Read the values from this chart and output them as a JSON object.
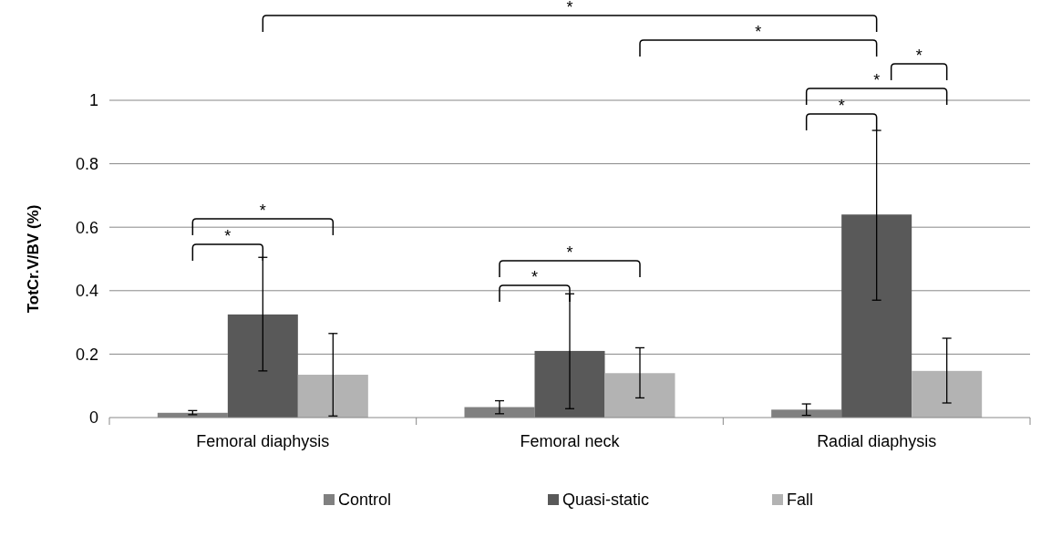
{
  "chart_data": {
    "type": "bar",
    "ylabel": "TotCr.V/BV (%)",
    "categories": [
      "Femoral diaphysis",
      "Femoral neck",
      "Radial diaphysis"
    ],
    "series": [
      {
        "name": "Control",
        "color": "#808080",
        "values": [
          0.015,
          0.033,
          0.025
        ],
        "errors": [
          [
            0.009,
            0.022
          ],
          [
            0.012,
            0.053
          ],
          [
            0.007,
            0.043
          ]
        ]
      },
      {
        "name": "Quasi-static",
        "color": "#595959",
        "values": [
          0.325,
          0.21,
          0.64
        ],
        "errors": [
          [
            0.147,
            0.505
          ],
          [
            0.028,
            0.39
          ],
          [
            0.37,
            0.905
          ]
        ]
      },
      {
        "name": "Fall",
        "color": "#b3b3b3",
        "values": [
          0.135,
          0.14,
          0.147
        ],
        "errors": [
          [
            0.005,
            0.265
          ],
          [
            0.062,
            0.22
          ],
          [
            0.046,
            0.25
          ]
        ]
      }
    ],
    "ylim": [
      0,
      1
    ],
    "yticks": [
      0,
      0.2,
      0.4,
      0.6,
      0.8,
      1
    ],
    "grid": "y",
    "legend": "bottom",
    "annotations": [
      "*",
      "*",
      "*",
      "*",
      "*",
      "*",
      "*",
      "*",
      "*"
    ]
  }
}
